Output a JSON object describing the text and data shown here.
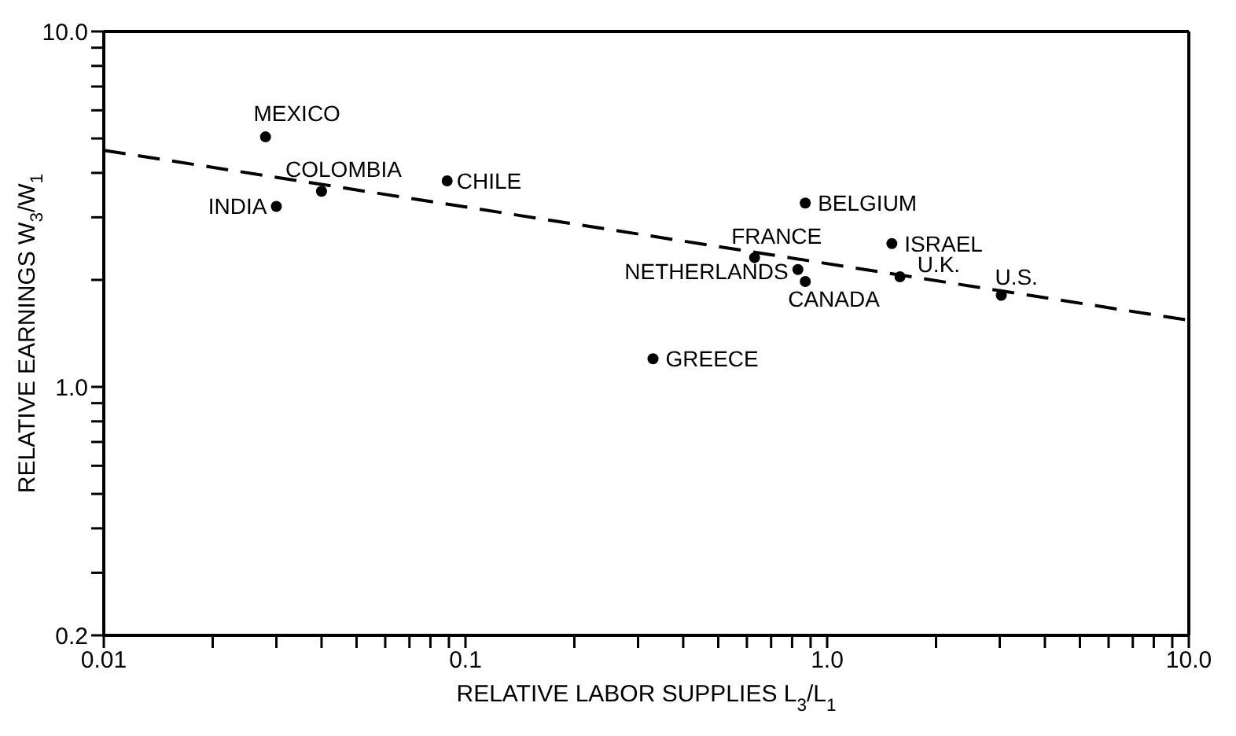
{
  "chart_data": {
    "type": "scatter",
    "xlabel": "RELATIVE LABOR SUPPLIES    L$_{3}$/L$_{1}$",
    "ylabel": "RELATIVE EARNINGS    W$_{3}$/W$_{1}$",
    "log": "xy",
    "xlim": [
      0.01,
      10
    ],
    "ylim": [
      0.2,
      10
    ],
    "xticks": [
      0.01,
      {
        "value": 0.02,
        "label": null
      },
      {
        "value": 0.03,
        "label": null
      },
      {
        "value": 0.04,
        "label": null
      },
      {
        "value": 0.05,
        "label": null
      },
      {
        "value": 0.06,
        "label": null
      },
      {
        "value": 0.07,
        "label": null
      },
      {
        "value": 0.08,
        "label": null
      },
      {
        "value": 0.09,
        "label": null
      },
      0.1,
      {
        "value": 0.2,
        "label": null
      },
      {
        "value": 0.3,
        "label": null
      },
      {
        "value": 0.4,
        "label": null
      },
      {
        "value": 0.5,
        "label": null
      },
      {
        "value": 0.6,
        "label": null
      },
      {
        "value": 0.7,
        "label": null
      },
      {
        "value": 0.8,
        "label": null
      },
      {
        "value": 0.9,
        "label": null
      },
      {
        "value": 1,
        "label": "1.0"
      },
      {
        "value": 2,
        "label": null
      },
      {
        "value": 3,
        "label": null
      },
      {
        "value": 4,
        "label": null
      },
      {
        "value": 5,
        "label": null
      },
      {
        "value": 6,
        "label": null
      },
      {
        "value": 7,
        "label": null
      },
      {
        "value": 8,
        "label": null
      },
      {
        "value": 9,
        "label": null
      },
      {
        "value": 10,
        "label": "10.0"
      }
    ],
    "yticks": [
      {
        "value": 0.2,
        "label": "0.2"
      },
      {
        "value": 0.3,
        "label": null
      },
      {
        "value": 0.4,
        "label": null
      },
      {
        "value": 0.5,
        "label": null
      },
      {
        "value": 0.6,
        "label": null
      },
      {
        "value": 0.7,
        "label": null
      },
      {
        "value": 0.8,
        "label": null
      },
      {
        "value": 0.9,
        "label": null
      },
      {
        "value": 1,
        "label": "1.0"
      },
      {
        "value": 2,
        "label": null
      },
      {
        "value": 3,
        "label": null
      },
      {
        "value": 4,
        "label": null
      },
      {
        "value": 5,
        "label": null
      },
      {
        "value": 6,
        "label": null
      },
      {
        "value": 7,
        "label": null
      },
      {
        "value": 8,
        "label": null
      },
      {
        "value": 9,
        "label": null
      },
      {
        "value": 10,
        "label": "10.0"
      }
    ],
    "legend": false,
    "series": [
      {
        "color": "#000000",
        "marker": "circle",
        "x": [
          0.028,
          0.04,
          0.03,
          0.089,
          0.87,
          0.63,
          0.83,
          0.87,
          1.51,
          1.59,
          3.03,
          0.33
        ],
        "values": [
          5.05,
          3.55,
          3.22,
          3.8,
          3.29,
          2.31,
          2.14,
          1.98,
          2.53,
          2.04,
          1.81,
          1.2
        ]
      },
      {
        "type": "line",
        "color": "#000000",
        "marker": "none",
        "line_style": "dashed",
        "x": [
          0.01,
          10
        ],
        "values": [
          4.63,
          1.54
        ]
      }
    ],
    "annotations": [
      {
        "text": "MEXICO",
        "x": 0.028,
        "y": 5.05
      },
      {
        "text": "COLOMBIA",
        "x": 0.04,
        "y": 3.55
      },
      {
        "text": "INDIA",
        "x": 0.03,
        "y": 3.22
      },
      {
        "text": "CHILE",
        "x": 0.089,
        "y": 3.8
      },
      {
        "text": "BELGIUM",
        "x": 0.87,
        "y": 3.29
      },
      {
        "text": "FRANCE",
        "x": 0.63,
        "y": 2.31
      },
      {
        "text": "NETHERLANDS",
        "x": 0.83,
        "y": 2.14
      },
      {
        "text": "CANADA",
        "x": 0.87,
        "y": 1.98
      },
      {
        "text": "ISRAEL",
        "x": 1.51,
        "y": 2.53
      },
      {
        "text": "U.K.",
        "x": 1.59,
        "y": 2.04
      },
      {
        "text": "U.S.",
        "x": 3.03,
        "y": 1.81
      },
      {
        "text": "GREECE",
        "x": 0.33,
        "y": 1.2
      }
    ]
  }
}
